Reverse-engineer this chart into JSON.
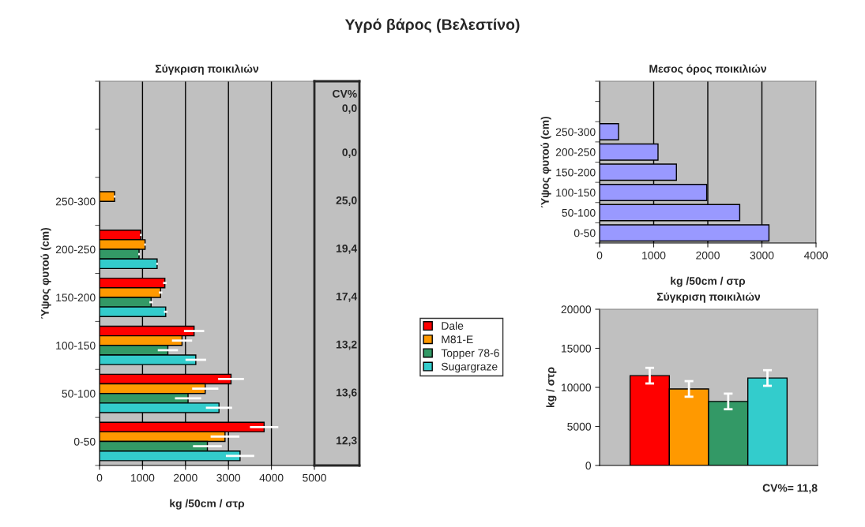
{
  "chart_data": [
    {
      "type": "other",
      "title": "Υγρό βάρος (Βελεστίνο)"
    },
    {
      "type": "bar",
      "orientation": "horizontal",
      "title": "Σύγκριση ποικιλιών",
      "xlabel": "kg /50cm / στρ",
      "ylabel": "Ύψος φυτού (cm)",
      "categories": [
        null,
        null,
        "250-300",
        "200-250",
        "150-200",
        "100-150",
        "50-100",
        "0-50"
      ],
      "series": [
        {
          "name": "Dale",
          "color": "#ff0000",
          "values": [
            null,
            null,
            null,
            960,
            1520,
            2200,
            3060,
            3830
          ],
          "errors": [
            null,
            null,
            null,
            20,
            40,
            235,
            300,
            330
          ]
        },
        {
          "name": "M81-E",
          "color": "#ff9900",
          "values": [
            null,
            null,
            350,
            1060,
            1420,
            1920,
            2460,
            2920
          ],
          "errors": [
            null,
            null,
            20,
            20,
            40,
            235,
            305,
            335
          ]
        },
        {
          "name": "Topper 78-6",
          "color": "#339966",
          "values": [
            null,
            null,
            null,
            920,
            1200,
            1590,
            2060,
            2510
          ],
          "errors": [
            null,
            null,
            null,
            20,
            40,
            235,
            305,
            335
          ]
        },
        {
          "name": "Sugargraze",
          "color": "#33cccc",
          "values": [
            null,
            null,
            null,
            1340,
            1540,
            2240,
            2780,
            3270
          ],
          "errors": [
            null,
            null,
            null,
            20,
            40,
            240,
            305,
            330
          ]
        }
      ],
      "xlim": [
        0,
        5000
      ],
      "xticks": [
        0,
        1000,
        2000,
        3000,
        4000,
        5000
      ],
      "grid": "x",
      "legend": "right"
    },
    {
      "type": "other",
      "annotations": [
        "CV%",
        "0,0",
        "0,0",
        "25,0",
        "19,4",
        "17,4",
        "13,2",
        "13,6",
        "12,3"
      ]
    },
    {
      "type": "bar",
      "orientation": "horizontal",
      "title": "Μεσος όρος ποικιλιών",
      "xlabel": "kg /50cm / στρ",
      "ylabel": "Ύψος φυτού (cm)",
      "categories": [
        null,
        null,
        "250-300",
        "200-250",
        "150-200",
        "100-150",
        "50-100",
        "0-50"
      ],
      "series": [
        {
          "color": "#9999ff",
          "values": [
            null,
            null,
            350,
            1080,
            1420,
            1980,
            2590,
            3130
          ]
        }
      ],
      "xlim": [
        0,
        4000
      ],
      "xticks": [
        0,
        1000,
        2000,
        3000,
        4000
      ],
      "grid": "x"
    },
    {
      "type": "bar",
      "title": "Σύγκριση ποικιλιών",
      "ylabel": "kg / στρ",
      "categories": [
        null
      ],
      "series": [
        {
          "color": "#ff0000",
          "values": [
            11500
          ],
          "errors": [
            1000
          ]
        },
        {
          "color": "#ff9900",
          "values": [
            9800
          ],
          "errors": [
            1000
          ]
        },
        {
          "color": "#339966",
          "values": [
            8200
          ],
          "errors": [
            1000
          ]
        },
        {
          "color": "#33cccc",
          "values": [
            11200
          ],
          "errors": [
            1000
          ]
        }
      ],
      "ylim": [
        0,
        20000
      ],
      "yticks": [
        0,
        5000,
        10000,
        15000,
        20000
      ],
      "grid": false,
      "annotations": [
        "CV%= 11,8"
      ]
    }
  ]
}
